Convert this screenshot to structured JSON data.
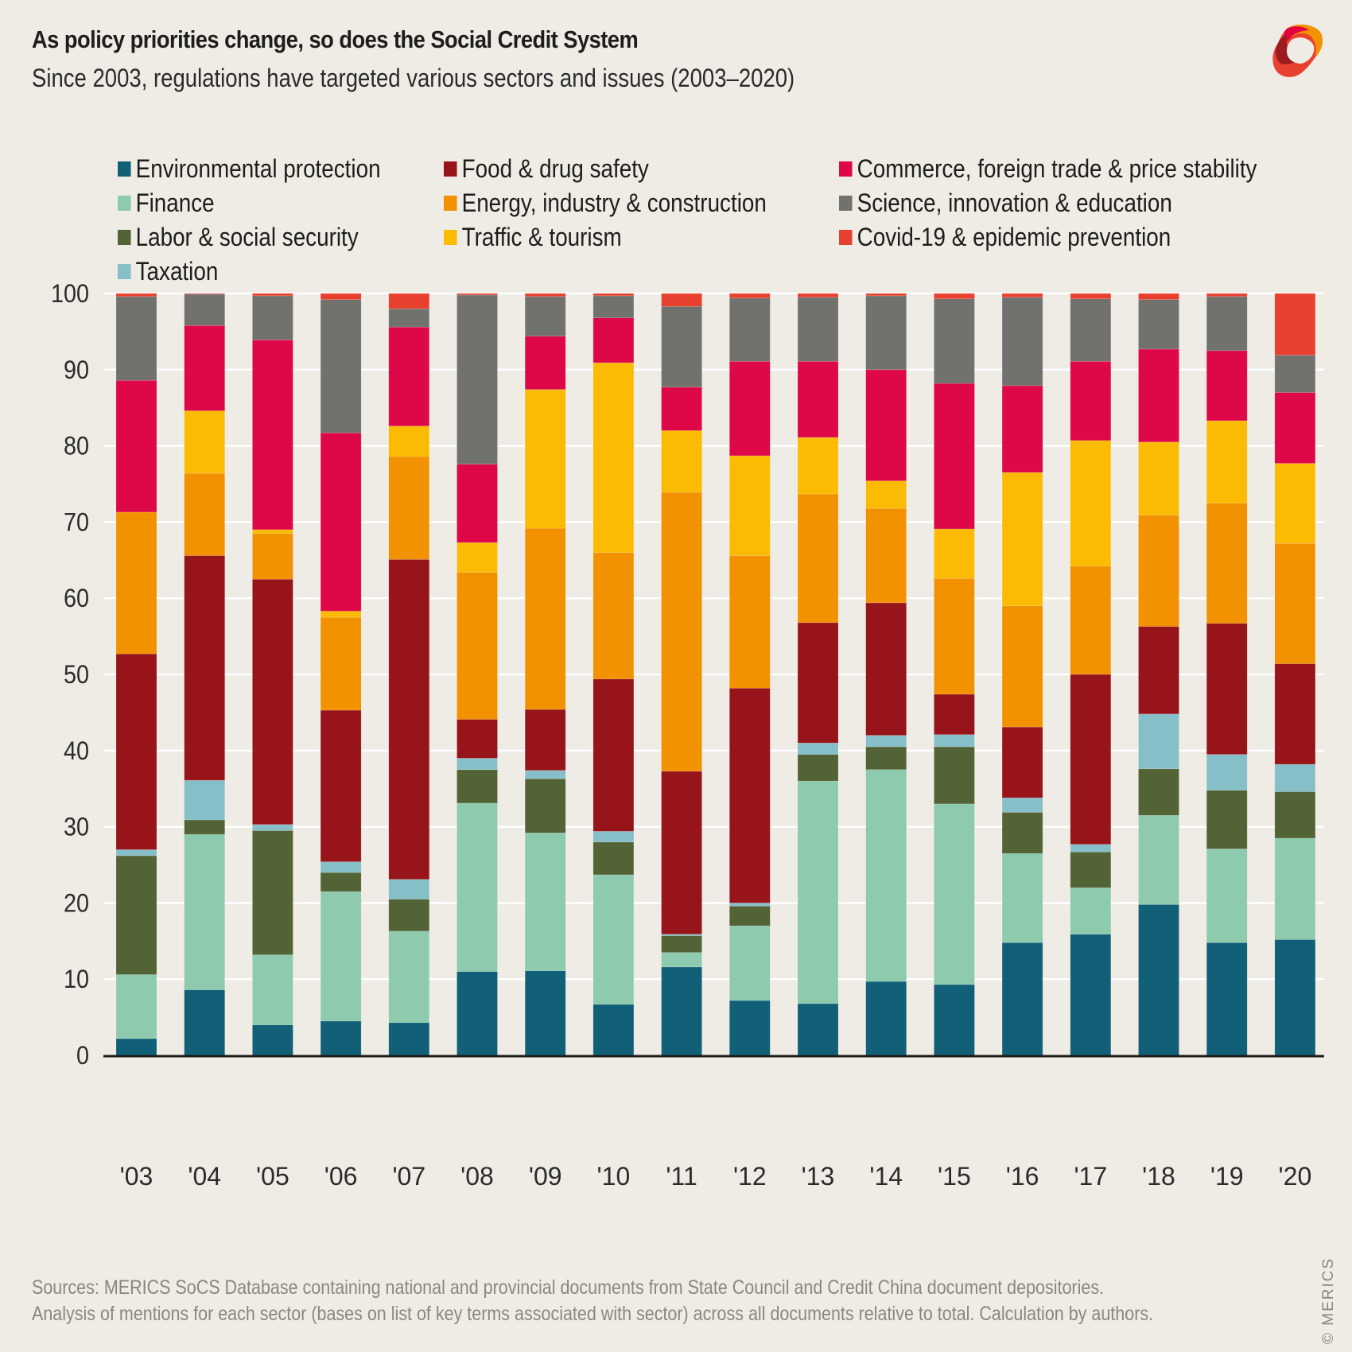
{
  "header": {
    "title": "As policy priorities change, so does the Social Credit System",
    "subtitle": "Since 2003, regulations have targeted various sectors and issues (2003–2020)"
  },
  "logo": {
    "icon": "merics-ribbon-logo",
    "colors": [
      "#e2003f",
      "#f39200",
      "#9b1b1f",
      "#e84130"
    ]
  },
  "footer": {
    "sources": "Sources: MERICS SoCS Database containing national and provincial documents from State Council and Credit China document depositories.",
    "analysis": "Analysis of mentions for each sector (bases on list of key terms associated with sector) across all documents relative to total. Calculation by authors.",
    "copyright": "© MERICS"
  },
  "chart_data": {
    "type": "bar",
    "stacked": true,
    "title": "As policy priorities change, so does the Social Credit System",
    "subtitle": "Since 2003, regulations have targeted various sectors and issues (2003–2020)",
    "xlabel": "",
    "ylabel": "",
    "ylim": [
      0,
      100
    ],
    "yticks": [
      0,
      10,
      20,
      30,
      40,
      50,
      60,
      70,
      80,
      90,
      100
    ],
    "grid": true,
    "legend_position": "top",
    "categories": [
      "'03",
      "'04",
      "'05",
      "'06",
      "'07",
      "'08",
      "'09",
      "'10",
      "'11",
      "'12",
      "'13",
      "'14",
      "'15",
      "'16",
      "'17",
      "'18",
      "'19",
      "'20"
    ],
    "series": [
      {
        "name": "Environmental protection",
        "color": "#116077",
        "values": [
          2.2,
          8.6,
          4.0,
          4.5,
          4.3,
          11.0,
          11.1,
          6.7,
          11.6,
          7.2,
          6.8,
          9.7,
          9.3,
          14.8,
          15.9,
          19.8,
          14.8,
          15.2
        ]
      },
      {
        "name": "Finance",
        "color": "#8dcaae",
        "values": [
          8.4,
          20.4,
          9.2,
          17.0,
          12.0,
          22.1,
          18.1,
          17.0,
          1.9,
          9.8,
          29.2,
          27.8,
          23.7,
          11.7,
          6.1,
          11.7,
          12.3,
          13.3
        ]
      },
      {
        "name": "Labor & social security",
        "color": "#526335",
        "values": [
          15.6,
          1.9,
          16.3,
          2.5,
          4.2,
          4.4,
          7.1,
          4.3,
          2.2,
          2.6,
          3.5,
          3.0,
          7.5,
          5.4,
          4.7,
          6.1,
          7.7,
          6.1
        ]
      },
      {
        "name": "Taxation",
        "color": "#86bfc8",
        "values": [
          0.8,
          5.2,
          0.8,
          1.4,
          2.6,
          1.5,
          1.1,
          1.4,
          0.2,
          0.4,
          1.5,
          1.5,
          1.6,
          1.9,
          1.0,
          7.2,
          4.7,
          3.6
        ]
      },
      {
        "name": "Food & drug safety",
        "color": "#97141a",
        "values": [
          25.7,
          29.5,
          32.2,
          19.9,
          42.0,
          5.1,
          8.0,
          20.0,
          21.4,
          28.2,
          15.8,
          17.4,
          5.3,
          9.3,
          22.3,
          11.5,
          17.2,
          13.2
        ]
      },
      {
        "name": "Energy, industry & construction",
        "color": "#f29200",
        "values": [
          18.6,
          10.8,
          6.0,
          12.2,
          13.5,
          19.3,
          23.8,
          16.6,
          36.6,
          17.4,
          16.9,
          12.4,
          15.2,
          15.9,
          14.2,
          14.6,
          15.8,
          15.8
        ]
      },
      {
        "name": "Traffic & tourism",
        "color": "#fbbb03",
        "values": [
          0.0,
          8.2,
          0.5,
          0.8,
          4.0,
          3.9,
          18.2,
          24.9,
          8.1,
          13.1,
          7.4,
          3.6,
          6.5,
          17.5,
          16.5,
          9.6,
          10.8,
          10.5
        ]
      },
      {
        "name": "Commerce, foreign trade & price stability",
        "color": "#de0747",
        "values": [
          17.3,
          11.2,
          24.9,
          23.4,
          13.0,
          10.3,
          7.0,
          5.9,
          5.7,
          12.4,
          10.0,
          14.6,
          19.1,
          11.4,
          10.4,
          12.2,
          9.2,
          9.3
        ]
      },
      {
        "name": "Science, innovation & education",
        "color": "#71716e",
        "values": [
          11.0,
          4.1,
          5.8,
          17.5,
          2.4,
          22.2,
          5.2,
          2.9,
          10.6,
          8.3,
          8.4,
          9.7,
          11.1,
          11.6,
          8.2,
          6.5,
          7.1,
          4.9
        ]
      },
      {
        "name": "Covid-19 & epidemic prevention",
        "color": "#e8402e",
        "values": [
          0.4,
          0.1,
          0.3,
          0.8,
          2.0,
          0.2,
          0.4,
          0.3,
          1.7,
          0.6,
          0.5,
          0.3,
          0.7,
          0.5,
          0.7,
          0.8,
          0.4,
          8.1
        ]
      }
    ]
  }
}
